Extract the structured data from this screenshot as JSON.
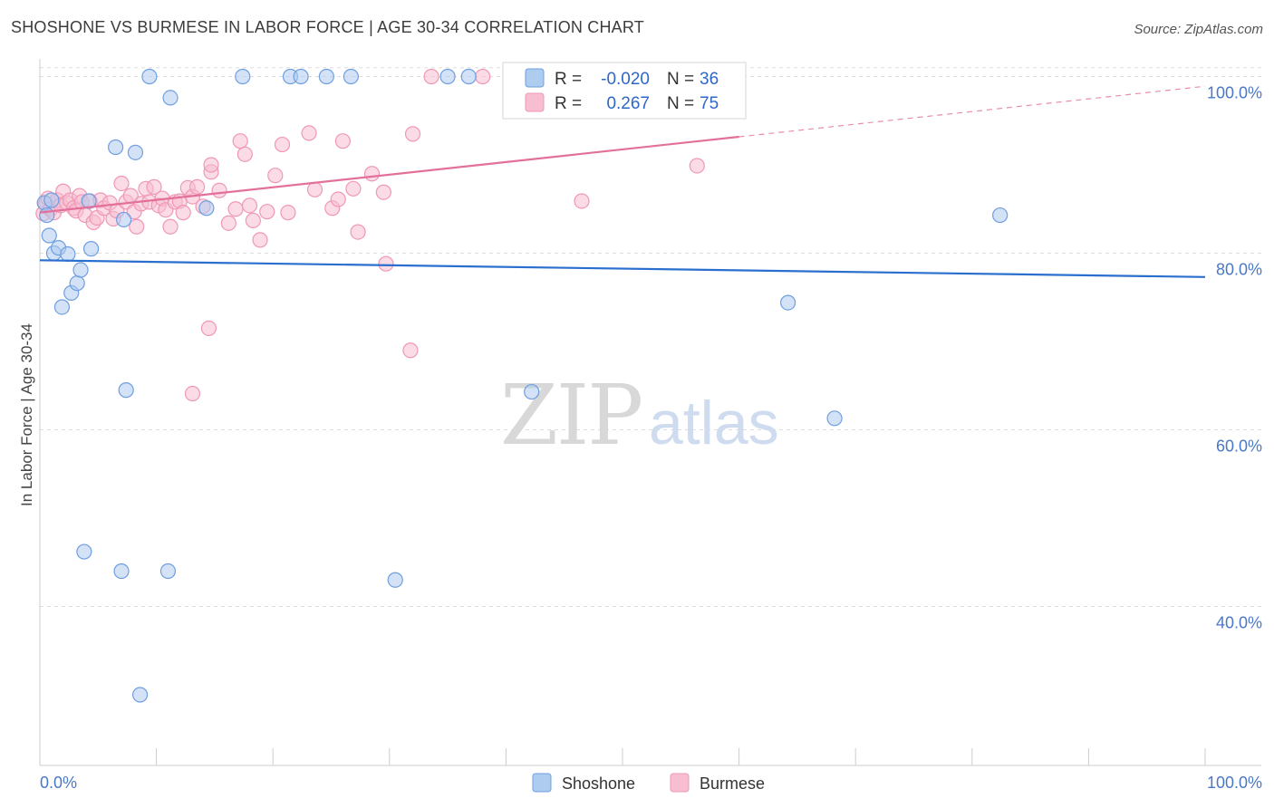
{
  "title": "SHOSHONE VS BURMESE IN LABOR FORCE | AGE 30-34 CORRELATION CHART",
  "source": "Source: ZipAtlas.com",
  "watermark": {
    "zip": "ZIP",
    "atlas": "atlas"
  },
  "colors": {
    "shoshone_fill": "#aecbf0",
    "shoshone_stroke": "#6f9fe0",
    "shoshone_line": "#2b6fce",
    "burmese_fill": "#f7bdd0",
    "burmese_stroke": "#ef98b6",
    "burmese_line": "#e2709a",
    "axis_text": "#4a78c8",
    "grid": "#dddddd"
  },
  "legend": {
    "rows": [
      {
        "series": "Shoshone",
        "r_label": "R =",
        "r_value": "-0.020",
        "n_label": "N =",
        "n_value": "36"
      },
      {
        "series": "Burmese",
        "r_label": "R =",
        "r_value": "0.267",
        "n_label": "N =",
        "n_value": "75"
      }
    ]
  },
  "bottom_legend": [
    "Shoshone",
    "Burmese"
  ],
  "chart_data": {
    "type": "scatter",
    "title": "SHOSHONE VS BURMESE IN LABOR FORCE | AGE 30-34 CORRELATION CHART",
    "xlabel": "",
    "ylabel": "In Labor Force | Age 30-34",
    "xlim": [
      0,
      100
    ],
    "ylim": [
      22,
      102
    ],
    "x_tick_labels": [
      "0.0%",
      "100.0%"
    ],
    "y_ticks": [
      40,
      60,
      80,
      100
    ],
    "y_tick_labels": [
      "40.0%",
      "60.0%",
      "80.0%",
      "100.0%"
    ],
    "grid": true,
    "legend_position": "top-center",
    "series": [
      {
        "name": "Shoshone",
        "r": -0.02,
        "n": 36,
        "trend": {
          "x": [
            0,
            100
          ],
          "y": [
            79.2,
            77.3
          ],
          "dashed_from": null
        },
        "points": [
          [
            0.4,
            85.7
          ],
          [
            0.6,
            84.3
          ],
          [
            0.8,
            82.0
          ],
          [
            1.0,
            86.0
          ],
          [
            1.2,
            80.0
          ],
          [
            1.6,
            80.6
          ],
          [
            1.9,
            73.9
          ],
          [
            2.4,
            79.9
          ],
          [
            2.7,
            75.5
          ],
          [
            3.2,
            76.6
          ],
          [
            3.5,
            78.1
          ],
          [
            3.8,
            46.2
          ],
          [
            4.2,
            85.9
          ],
          [
            4.4,
            80.5
          ],
          [
            6.5,
            92.0
          ],
          [
            7.2,
            83.8
          ],
          [
            7.4,
            64.5
          ],
          [
            8.2,
            91.4
          ],
          [
            8.6,
            30.0
          ],
          [
            7.0,
            44.0
          ],
          [
            9.4,
            100.0
          ],
          [
            11.2,
            97.6
          ],
          [
            11.0,
            44.0
          ],
          [
            14.3,
            85.1
          ],
          [
            17.4,
            100.0
          ],
          [
            21.5,
            100.0
          ],
          [
            22.4,
            100.0
          ],
          [
            24.6,
            100.0
          ],
          [
            26.7,
            100.0
          ],
          [
            30.5,
            43.0
          ],
          [
            36.8,
            100.0
          ],
          [
            42.2,
            64.3
          ],
          [
            64.2,
            74.4
          ],
          [
            68.2,
            61.3
          ],
          [
            82.4,
            84.3
          ],
          [
            35.0,
            100.0
          ]
        ]
      },
      {
        "name": "Burmese",
        "r": 0.267,
        "n": 75,
        "trend": {
          "x": [
            0,
            100
          ],
          "y": [
            84.6,
            98.9
          ],
          "dashed_from": 60
        },
        "points": [
          [
            0.3,
            84.5
          ],
          [
            0.5,
            85.6
          ],
          [
            0.7,
            86.2
          ],
          [
            0.9,
            85.0
          ],
          [
            1.2,
            84.6
          ],
          [
            1.5,
            86.0
          ],
          [
            1.8,
            85.4
          ],
          [
            2.0,
            87.0
          ],
          [
            2.3,
            85.7
          ],
          [
            2.6,
            86.0
          ],
          [
            2.9,
            85.1
          ],
          [
            3.1,
            84.8
          ],
          [
            3.4,
            86.5
          ],
          [
            3.6,
            85.8
          ],
          [
            3.9,
            84.3
          ],
          [
            4.3,
            85.9
          ],
          [
            4.6,
            83.5
          ],
          [
            4.9,
            84.0
          ],
          [
            5.2,
            86.0
          ],
          [
            5.5,
            85.1
          ],
          [
            6.0,
            85.7
          ],
          [
            6.3,
            83.9
          ],
          [
            6.6,
            84.8
          ],
          [
            7.0,
            87.9
          ],
          [
            7.4,
            85.8
          ],
          [
            7.8,
            86.5
          ],
          [
            8.1,
            84.7
          ],
          [
            8.3,
            83.0
          ],
          [
            8.7,
            85.6
          ],
          [
            9.1,
            87.3
          ],
          [
            9.4,
            85.8
          ],
          [
            9.8,
            87.5
          ],
          [
            10.2,
            85.4
          ],
          [
            10.5,
            86.2
          ],
          [
            10.8,
            84.9
          ],
          [
            11.2,
            83.0
          ],
          [
            11.6,
            85.8
          ],
          [
            12.0,
            85.9
          ],
          [
            12.3,
            84.6
          ],
          [
            12.7,
            87.4
          ],
          [
            13.1,
            86.4
          ],
          [
            13.5,
            87.5
          ],
          [
            14.0,
            85.3
          ],
          [
            14.7,
            89.2
          ],
          [
            15.4,
            87.1
          ],
          [
            16.2,
            83.4
          ],
          [
            16.8,
            85.0
          ],
          [
            17.2,
            92.7
          ],
          [
            17.6,
            91.2
          ],
          [
            18.0,
            85.4
          ],
          [
            18.3,
            83.7
          ],
          [
            18.9,
            81.5
          ],
          [
            19.5,
            84.7
          ],
          [
            20.2,
            88.8
          ],
          [
            20.8,
            92.3
          ],
          [
            21.3,
            84.6
          ],
          [
            23.1,
            93.6
          ],
          [
            23.6,
            87.2
          ],
          [
            25.1,
            85.1
          ],
          [
            25.6,
            86.1
          ],
          [
            26.0,
            92.7
          ],
          [
            26.9,
            87.3
          ],
          [
            27.3,
            82.4
          ],
          [
            28.5,
            89.0
          ],
          [
            29.5,
            86.9
          ],
          [
            29.7,
            78.8
          ],
          [
            31.8,
            69.0
          ],
          [
            32.0,
            93.5
          ],
          [
            14.5,
            71.5
          ],
          [
            13.1,
            64.1
          ],
          [
            33.6,
            100.0
          ],
          [
            38.0,
            100.0
          ],
          [
            56.4,
            89.9
          ],
          [
            46.5,
            85.9
          ],
          [
            14.7,
            90.0
          ]
        ]
      }
    ]
  }
}
